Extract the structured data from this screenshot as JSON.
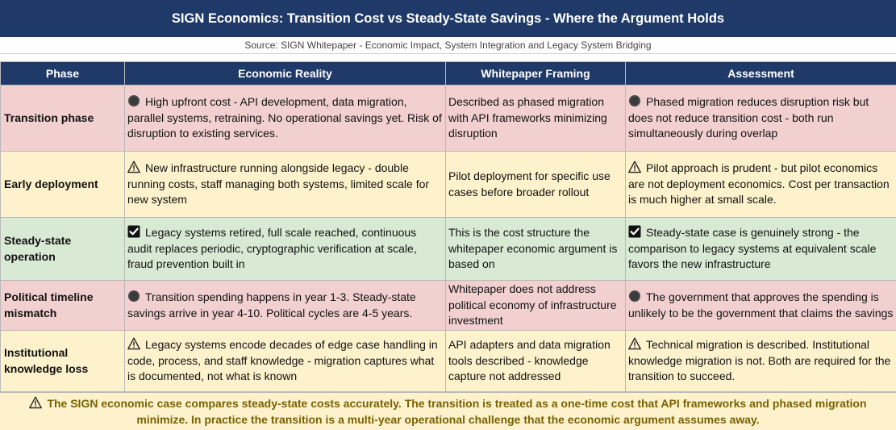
{
  "title": "SIGN Economics: Transition Cost vs Steady-State Savings - Where the Argument Holds",
  "source": "Source: SIGN Whitepaper - Economic Impact, System Integration and Legacy System Bridging",
  "headers": [
    "Phase",
    "Economic Reality",
    "Whitepaper Framing",
    "Assessment"
  ],
  "rows": [
    {
      "phase": "Transition phase",
      "status": "red",
      "reality_icon": "red-circle-icon",
      "reality": "High upfront cost - API development, data migration, parallel systems, retraining. No operational savings yet. Risk of disruption to existing services.",
      "framing": "Described as phased migration with API frameworks minimizing disruption",
      "assessment_icon": "red-circle-icon",
      "assessment": "Phased migration reduces disruption risk but does not reduce transition cost - both run simultaneously during overlap"
    },
    {
      "phase": "Early deployment",
      "status": "yellow",
      "reality_icon": "warning-icon",
      "reality": "New infrastructure running alongside legacy - double running costs, staff managing both systems, limited scale for new system",
      "framing": "Pilot deployment for specific use cases before broader rollout",
      "assessment_icon": "warning-icon",
      "assessment": "Pilot approach is prudent - but pilot economics are not deployment economics. Cost per transaction is much higher at small scale."
    },
    {
      "phase": "Steady-state operation",
      "status": "green",
      "reality_icon": "checkmark-icon",
      "reality": "Legacy systems retired, full scale reached, continuous audit replaces periodic, cryptographic verification at scale, fraud prevention built in",
      "framing": "This is the cost structure the whitepaper economic argument is based on",
      "assessment_icon": "checkmark-icon",
      "assessment": "Steady-state case is genuinely strong - the comparison to legacy systems at equivalent scale favors the new infrastructure"
    },
    {
      "phase": "Political timeline mismatch",
      "status": "red",
      "reality_icon": "red-circle-icon",
      "reality": "Transition spending happens in year 1-3. Steady-state savings arrive in year 4-10. Political cycles are 4-5 years.",
      "framing": "Whitepaper does not address political economy of infrastructure investment",
      "assessment_icon": "red-circle-icon",
      "assessment": "The government that approves the spending is unlikely to be the government that claims the savings"
    },
    {
      "phase": "Institutional knowledge loss",
      "status": "yellow",
      "reality_icon": "warning-icon",
      "reality": "Legacy systems encode decades of edge case handling in code, process, and staff knowledge - migration captures what is documented, not what is known",
      "framing": "API adapters and data migration tools described - knowledge capture not addressed",
      "assessment_icon": "warning-icon",
      "assessment": "Technical migration is described. Institutional knowledge migration is not. Both are required for the transition to succeed."
    }
  ],
  "footer": {
    "icon": "warning-icon",
    "text": "The SIGN economic case compares steady-state costs accurately. The transition is treated as a one-time cost that API frameworks and phased migration minimize. In practice the transition is a multi-year operational challenge that the economic argument assumes away."
  },
  "colors": {
    "header_bg": "#1f3a68",
    "red_row": "#f2d0d0",
    "yellow_row": "#fdf2cc",
    "green_row": "#d8ead3",
    "footer_text": "#7a6200"
  }
}
